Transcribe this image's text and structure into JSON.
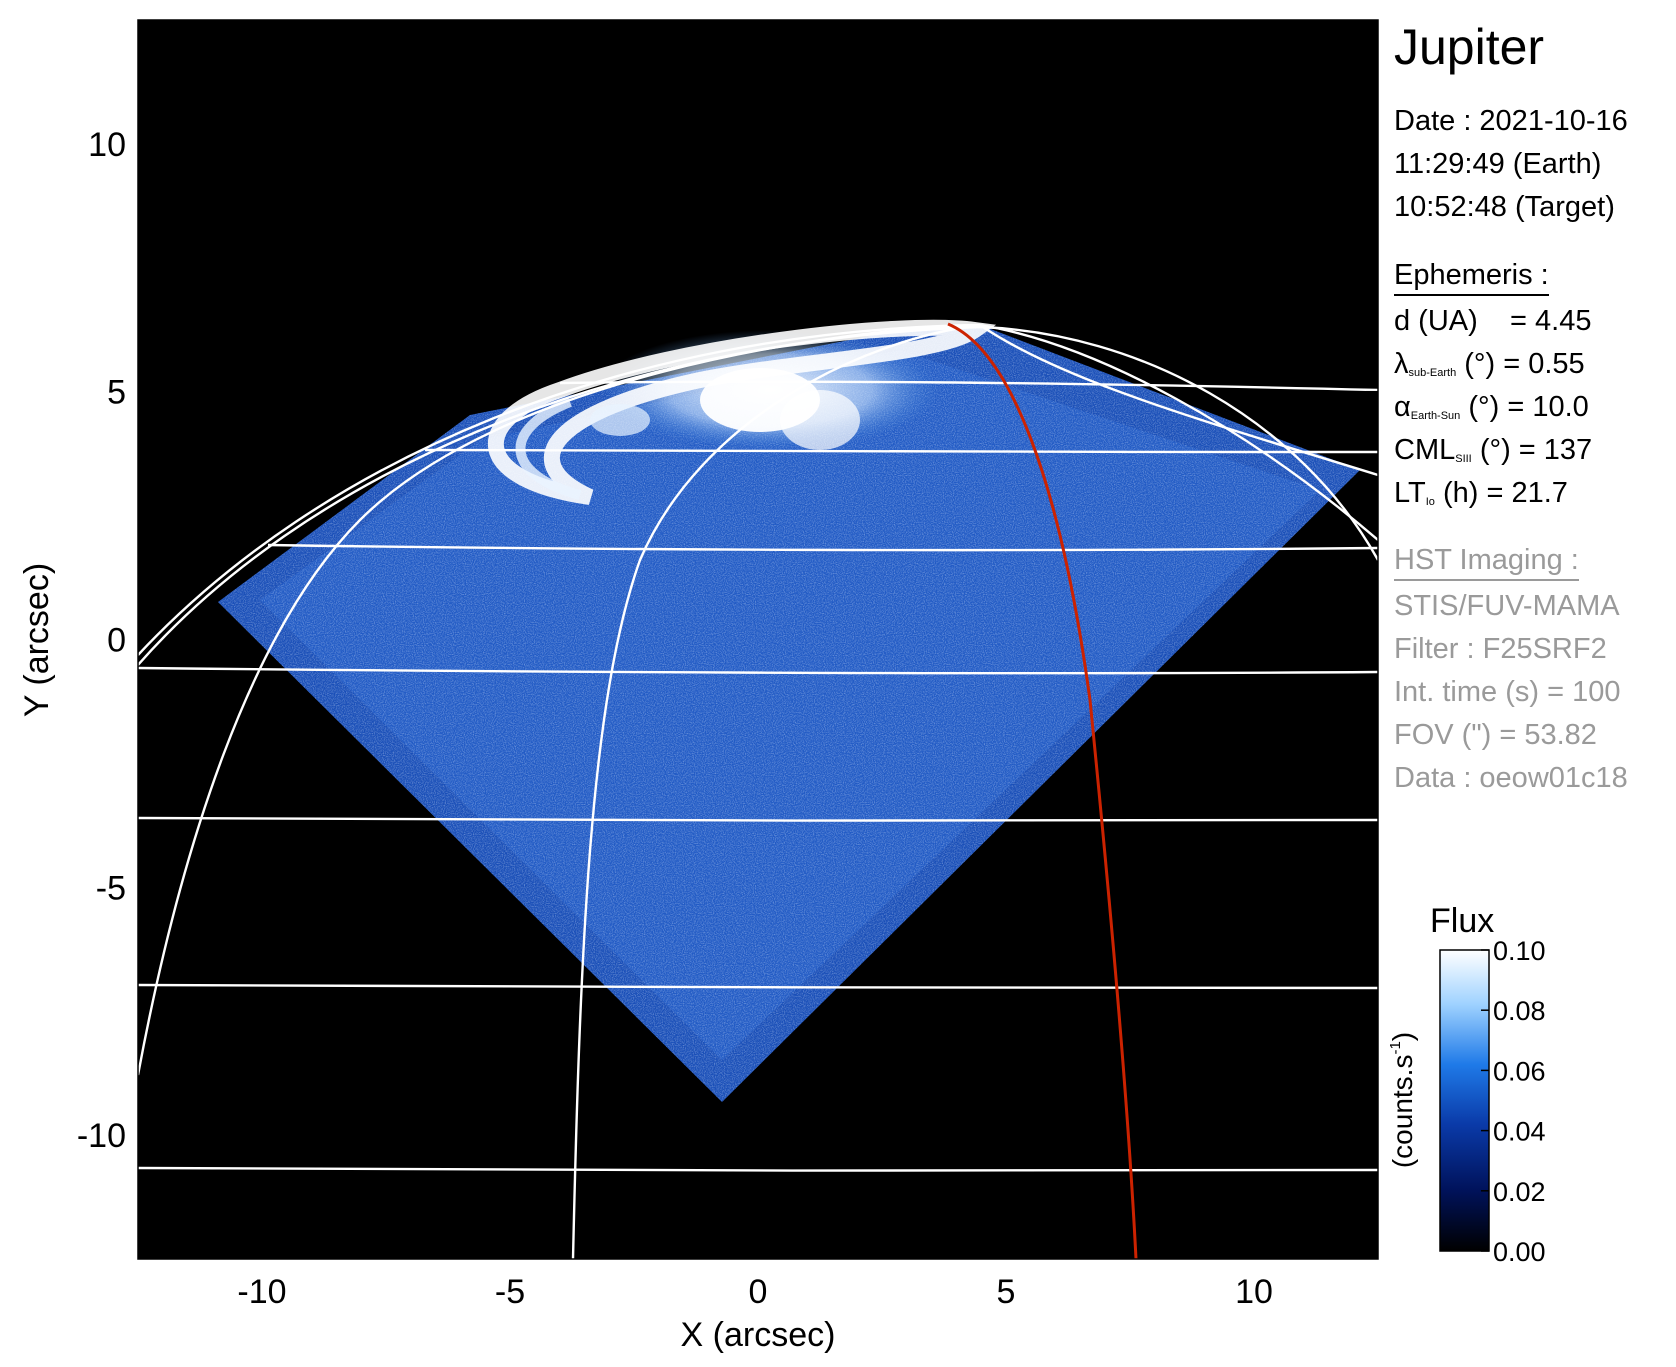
{
  "chart_data": {
    "type": "heatmap",
    "title": "Jupiter",
    "xlabel": "X (arcsec)",
    "ylabel": "Y (arcsec)",
    "xlim": [
      -12.5,
      12.5
    ],
    "ylim": [
      -12.5,
      12.5
    ],
    "xticks": [
      "-10",
      "-5",
      "0",
      "5",
      "10"
    ],
    "yticks": [
      "10",
      "5",
      "0",
      "-5",
      "-10"
    ],
    "grid": "planetographic latitude/longitude grid (white)",
    "colorbar": {
      "title": "Flux",
      "label": "(counts.s",
      "label_sup": "-1",
      "label_close": ")",
      "range": [
        0.0,
        0.1
      ],
      "ticks": [
        "0.10",
        "0.08",
        "0.06",
        "0.04",
        "0.02",
        "0.00"
      ],
      "colors": [
        "#000000",
        "#00125a",
        "#0a3aa8",
        "#1f7ae8",
        "#9fd2ff",
        "#ffffff"
      ]
    },
    "colors": {
      "background": "#000000",
      "grid": "#ffffff",
      "io_footpath": "#cc2200"
    }
  },
  "info": {
    "date_line": "Date : 2021-10-16",
    "earth_time": "11:29:49 (Earth)",
    "target_time": "10:52:48 (Target)",
    "ephemeris_header": "Ephemeris :",
    "d_label": "d (UA)",
    "d_value": "= 4.45",
    "lat_symbol": "λ",
    "lat_sub": "sub-Earth",
    "lat_rest": "(°) = 0.55",
    "alpha_symbol": "α",
    "alpha_sub": "Earth-Sun",
    "alpha_rest": "(°) = 10.0",
    "cml_label": "CML",
    "cml_sub": "SIII",
    "cml_rest": "(°) = 137",
    "lt_label": "LT",
    "lt_sub": "Io",
    "lt_rest": "(h) = 21.7"
  },
  "instrument": {
    "header": "HST Imaging :",
    "camera": "STIS/FUV-MAMA",
    "filter": "Filter : F25SRF2",
    "int_time": "Int. time (s) = 100",
    "fov": "FOV (\") = 53.82",
    "data_id": "Data : oeow01c18"
  }
}
